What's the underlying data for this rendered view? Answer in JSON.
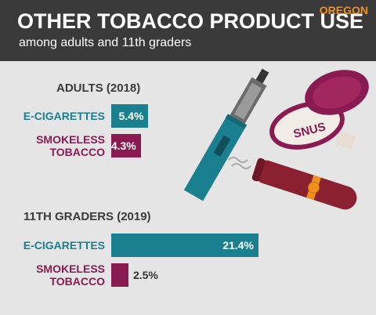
{
  "header": {
    "title": "OTHER TOBACCO PRODUCT USE",
    "subtitle": "among adults and 11th graders",
    "region": "OREGON"
  },
  "illustration": {
    "tin_label": "SNUS"
  },
  "chart_data": [
    {
      "type": "bar",
      "title": "ADULTS (2018)",
      "categories": [
        "E-CIGARETTES",
        "SMOKELESS TOBACCO"
      ],
      "values": [
        5.4,
        4.3
      ],
      "value_labels": [
        "5.4%",
        "4.3%"
      ],
      "colors": [
        "#1a7f8e",
        "#8a1a52"
      ]
    },
    {
      "type": "bar",
      "title": "11TH GRADERS (2019)",
      "categories": [
        "E-CIGARETTES",
        "SMOKELESS TOBACCO"
      ],
      "values": [
        21.4,
        2.5
      ],
      "value_labels": [
        "21.4%",
        "2.5%"
      ],
      "colors": [
        "#1a7f8e",
        "#8a1a52"
      ]
    }
  ]
}
